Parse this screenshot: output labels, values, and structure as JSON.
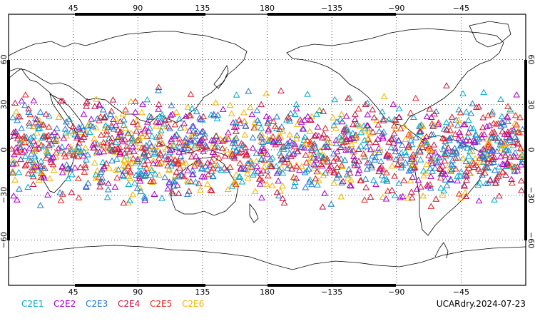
{
  "chart_data": {
    "type": "scatter",
    "projection": "equirectangular",
    "center_longitude": 180,
    "x_tick_labels": [
      "45",
      "90",
      "135",
      "180",
      "−135",
      "−90",
      "−45"
    ],
    "y_tick_labels": [
      "60",
      "30",
      "0",
      "−30",
      "−60"
    ],
    "y_ticks": [
      60,
      30,
      0,
      -30,
      -60
    ],
    "lat_range": [
      -90,
      90
    ],
    "obs_lat_band": [
      -45,
      45
    ],
    "grid": "dotted",
    "marker": "open-triangle",
    "legend_placement": "bottom-left",
    "series": [
      {
        "name": "C2E1",
        "color": "#00a9c9"
      },
      {
        "name": "C2E2",
        "color": "#a800c8"
      },
      {
        "name": "C2E3",
        "color": "#1f78d6"
      },
      {
        "name": "C2E4",
        "color": "#c8143c"
      },
      {
        "name": "C2E5",
        "color": "#e6241e"
      },
      {
        "name": "C2E6",
        "color": "#f0b400"
      }
    ],
    "source_label": "UCARdry.2024-07-23"
  }
}
